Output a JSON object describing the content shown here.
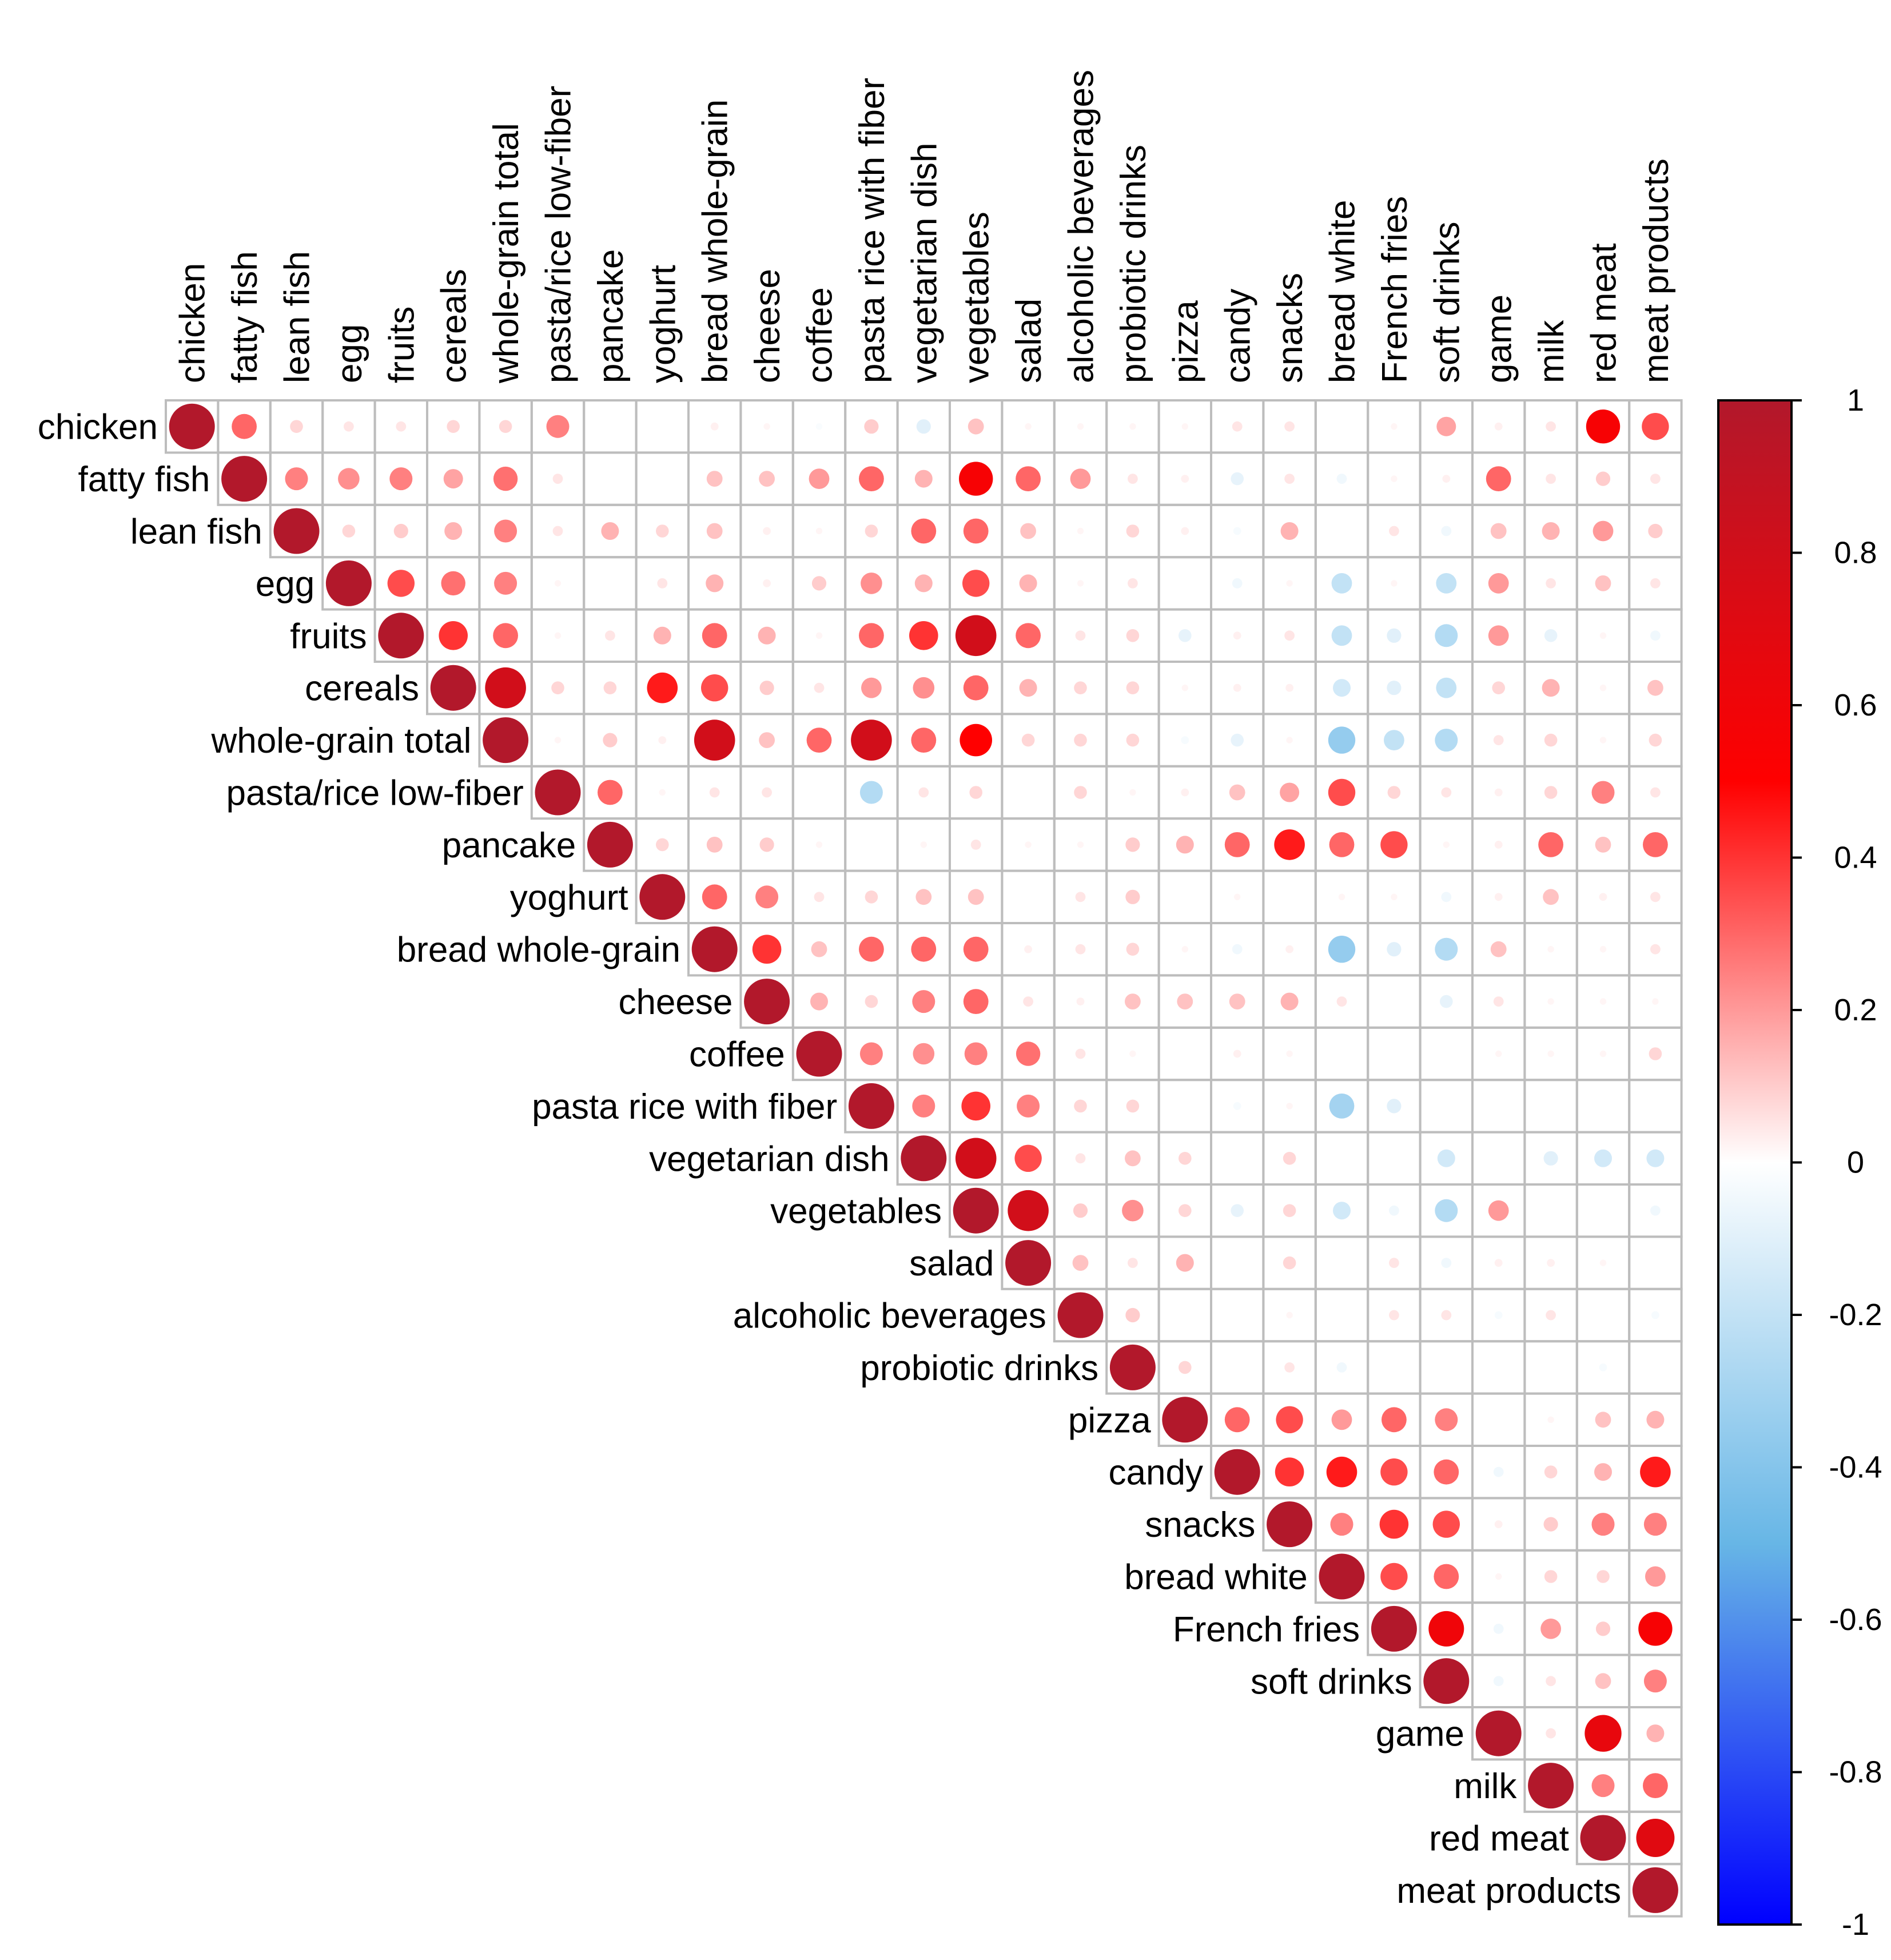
{
  "chart_data": {
    "type": "heatmap",
    "style": "correlation-circles-upper-triangle",
    "title": "",
    "variables": [
      "chicken",
      "fatty fish",
      "lean fish",
      "egg",
      "fruits",
      "cereals",
      "whole-grain total",
      "pasta/rice low-fiber",
      "pancake",
      "yoghurt",
      "bread whole-grain",
      "cheese",
      "coffee",
      "pasta rice with fiber",
      "vegetarian dish",
      "vegetables",
      "salad",
      "alcoholic beverages",
      "probiotic drinks",
      "pizza",
      "candy",
      "snacks",
      "bread white",
      "French fries",
      "soft drinks",
      "game",
      "milk",
      "red meat",
      "meat products"
    ],
    "color_scale": {
      "range": [
        -1,
        1
      ],
      "ticks": [
        "1",
        "0.8",
        "0.6",
        "0.4",
        "0.2",
        "0",
        "-0.2",
        "-0.4",
        "-0.6",
        "-0.8",
        "-1"
      ],
      "colors": [
        "#0000ff",
        "#67b6e6",
        "#ffffff",
        "#ff0000",
        "#b2182b"
      ]
    },
    "correlations": [
      [
        1.0,
        0.3,
        0.08,
        0.05,
        0.05,
        0.08,
        0.08,
        0.25,
        0.0,
        0.0,
        0.03,
        0.02,
        -0.02,
        0.1,
        -0.1,
        0.12,
        0.02,
        0.02,
        0.02,
        0.02,
        0.05,
        0.05,
        0.0,
        0.02,
        0.18,
        0.03,
        0.05,
        0.55,
        0.35
      ],
      [
        0,
        1.0,
        0.25,
        0.22,
        0.25,
        0.18,
        0.28,
        0.05,
        0.0,
        0.0,
        0.12,
        0.12,
        0.2,
        0.3,
        0.15,
        0.55,
        0.3,
        0.2,
        0.05,
        0.03,
        -0.08,
        0.05,
        -0.05,
        0.02,
        0.03,
        0.3,
        0.05,
        0.1,
        0.05
      ],
      [
        0,
        0,
        1.0,
        0.08,
        0.1,
        0.15,
        0.25,
        0.05,
        0.15,
        0.08,
        0.12,
        0.03,
        0.02,
        0.08,
        0.3,
        0.3,
        0.12,
        0.02,
        0.08,
        0.03,
        -0.03,
        0.15,
        0.0,
        0.05,
        -0.05,
        0.12,
        0.15,
        0.2,
        0.1
      ],
      [
        0,
        0,
        0,
        1.0,
        0.35,
        0.28,
        0.25,
        0.02,
        0.0,
        0.05,
        0.15,
        0.03,
        0.1,
        0.22,
        0.15,
        0.35,
        0.15,
        0.02,
        0.05,
        0.0,
        -0.05,
        0.02,
        -0.2,
        0.02,
        -0.2,
        0.2,
        0.05,
        0.12,
        0.05
      ],
      [
        0,
        0,
        0,
        0,
        1.0,
        0.4,
        0.3,
        0.02,
        0.05,
        0.15,
        0.3,
        0.15,
        0.02,
        0.3,
        0.4,
        0.8,
        0.3,
        0.05,
        0.08,
        -0.08,
        0.03,
        0.05,
        -0.2,
        -0.1,
        -0.25,
        0.2,
        -0.08,
        0.02,
        -0.05
      ],
      [
        0,
        0,
        0,
        0,
        0,
        1.0,
        0.8,
        0.08,
        0.08,
        0.45,
        0.35,
        0.1,
        0.05,
        0.2,
        0.22,
        0.3,
        0.15,
        0.08,
        0.08,
        0.02,
        0.03,
        0.03,
        -0.15,
        -0.1,
        -0.2,
        0.08,
        0.15,
        0.02,
        0.12
      ],
      [
        0,
        0,
        0,
        0,
        0,
        0,
        1.0,
        0.02,
        0.1,
        0.03,
        0.8,
        0.12,
        0.3,
        0.8,
        0.3,
        0.5,
        0.08,
        0.08,
        0.08,
        -0.03,
        -0.08,
        0.02,
        -0.35,
        -0.2,
        -0.25,
        0.05,
        0.08,
        0.02,
        0.08
      ],
      [
        0,
        0,
        0,
        0,
        0,
        0,
        0,
        1.0,
        0.3,
        0.02,
        0.05,
        0.05,
        0.0,
        -0.25,
        0.05,
        0.08,
        0.0,
        0.08,
        0.02,
        0.03,
        0.12,
        0.18,
        0.35,
        0.08,
        0.05,
        0.03,
        0.08,
        0.25,
        0.05
      ],
      [
        0,
        0,
        0,
        0,
        0,
        0,
        0,
        0,
        1.0,
        0.08,
        0.12,
        0.1,
        0.02,
        0.0,
        0.02,
        0.05,
        0.02,
        0.02,
        0.1,
        0.15,
        0.3,
        0.45,
        0.3,
        0.35,
        0.02,
        0.03,
        0.3,
        0.12,
        0.3
      ],
      [
        0,
        0,
        0,
        0,
        0,
        0,
        0,
        0,
        0,
        1.0,
        0.3,
        0.25,
        0.05,
        0.08,
        0.12,
        0.12,
        0.0,
        0.05,
        0.1,
        0.0,
        0.02,
        0.0,
        0.02,
        0.02,
        -0.05,
        0.03,
        0.12,
        0.03,
        0.05
      ],
      [
        0,
        0,
        0,
        0,
        0,
        0,
        0,
        0,
        0,
        0,
        1.0,
        0.4,
        0.12,
        0.3,
        0.3,
        0.3,
        0.03,
        0.05,
        0.08,
        0.02,
        -0.05,
        0.03,
        -0.35,
        -0.1,
        -0.25,
        0.12,
        0.02,
        0.02,
        0.05
      ],
      [
        0,
        0,
        0,
        0,
        0,
        0,
        0,
        0,
        0,
        0,
        0,
        1.0,
        0.15,
        0.08,
        0.25,
        0.3,
        0.05,
        0.03,
        0.12,
        0.12,
        0.12,
        0.15,
        0.05,
        0.0,
        -0.08,
        0.05,
        0.02,
        0.02,
        0.02
      ],
      [
        0,
        0,
        0,
        0,
        0,
        0,
        0,
        0,
        0,
        0,
        0,
        0,
        1.0,
        0.25,
        0.22,
        0.25,
        0.28,
        0.05,
        0.02,
        0.0,
        0.03,
        0.02,
        0.0,
        0.0,
        0.0,
        0.02,
        0.02,
        0.02,
        0.08
      ],
      [
        0,
        0,
        0,
        0,
        0,
        0,
        0,
        0,
        0,
        0,
        0,
        0,
        0,
        1.0,
        0.25,
        0.4,
        0.25,
        0.08,
        0.08,
        0.0,
        -0.03,
        0.02,
        -0.3,
        -0.1,
        0.0,
        0.0,
        0.0,
        0.0,
        0.0
      ],
      [
        0,
        0,
        0,
        0,
        0,
        0,
        0,
        0,
        0,
        0,
        0,
        0,
        0,
        0,
        1.0,
        0.8,
        0.35,
        0.05,
        0.12,
        0.08,
        0.0,
        0.08,
        0.0,
        0.0,
        -0.15,
        0.0,
        -0.1,
        -0.15,
        -0.15
      ],
      [
        0,
        0,
        0,
        0,
        0,
        0,
        0,
        0,
        0,
        0,
        0,
        0,
        0,
        0,
        0,
        1.0,
        0.8,
        0.1,
        0.22,
        0.08,
        -0.08,
        0.08,
        -0.15,
        -0.05,
        -0.25,
        0.2,
        0.0,
        0.0,
        -0.05
      ],
      [
        0,
        0,
        0,
        0,
        0,
        0,
        0,
        0,
        0,
        0,
        0,
        0,
        0,
        0,
        0,
        0,
        1.0,
        0.12,
        0.05,
        0.15,
        0.0,
        0.08,
        0.0,
        0.05,
        -0.05,
        0.03,
        0.03,
        0.02,
        0.0
      ],
      [
        0,
        0,
        0,
        0,
        0,
        0,
        0,
        0,
        0,
        0,
        0,
        0,
        0,
        0,
        0,
        0,
        0,
        1.0,
        0.1,
        0.0,
        0.0,
        0.02,
        0.0,
        0.05,
        0.05,
        -0.03,
        0.05,
        0.0,
        -0.03
      ],
      [
        0,
        0,
        0,
        0,
        0,
        0,
        0,
        0,
        0,
        0,
        0,
        0,
        0,
        0,
        0,
        0,
        0,
        0,
        1.0,
        0.08,
        0.0,
        0.05,
        -0.05,
        0.0,
        0.0,
        0.0,
        0.0,
        -0.03,
        0.0
      ],
      [
        0,
        0,
        0,
        0,
        0,
        0,
        0,
        0,
        0,
        0,
        0,
        0,
        0,
        0,
        0,
        0,
        0,
        0,
        0,
        1.0,
        0.3,
        0.35,
        0.2,
        0.3,
        0.25,
        0.0,
        0.02,
        0.12,
        0.15
      ],
      [
        0,
        0,
        0,
        0,
        0,
        0,
        0,
        0,
        0,
        0,
        0,
        0,
        0,
        0,
        0,
        0,
        0,
        0,
        0,
        0,
        1.0,
        0.4,
        0.45,
        0.35,
        0.3,
        -0.05,
        0.08,
        0.15,
        0.45
      ],
      [
        0,
        0,
        0,
        0,
        0,
        0,
        0,
        0,
        0,
        0,
        0,
        0,
        0,
        0,
        0,
        0,
        0,
        0,
        0,
        0,
        0,
        1.0,
        0.25,
        0.4,
        0.35,
        0.03,
        0.1,
        0.25,
        0.25
      ],
      [
        0,
        0,
        0,
        0,
        0,
        0,
        0,
        0,
        0,
        0,
        0,
        0,
        0,
        0,
        0,
        0,
        0,
        0,
        0,
        0,
        0,
        0,
        1.0,
        0.35,
        0.3,
        0.02,
        0.08,
        0.08,
        0.2
      ],
      [
        0,
        0,
        0,
        0,
        0,
        0,
        0,
        0,
        0,
        0,
        0,
        0,
        0,
        0,
        0,
        0,
        0,
        0,
        0,
        0,
        0,
        0,
        0,
        1.0,
        0.6,
        -0.05,
        0.2,
        0.1,
        0.55
      ],
      [
        0,
        0,
        0,
        0,
        0,
        0,
        0,
        0,
        0,
        0,
        0,
        0,
        0,
        0,
        0,
        0,
        0,
        0,
        0,
        0,
        0,
        0,
        0,
        0,
        1.0,
        -0.05,
        0.05,
        0.12,
        0.25
      ],
      [
        0,
        0,
        0,
        0,
        0,
        0,
        0,
        0,
        0,
        0,
        0,
        0,
        0,
        0,
        0,
        0,
        0,
        0,
        0,
        0,
        0,
        0,
        0,
        0,
        0,
        1.0,
        0.05,
        0.65,
        0.15
      ],
      [
        0,
        0,
        0,
        0,
        0,
        0,
        0,
        0,
        0,
        0,
        0,
        0,
        0,
        0,
        0,
        0,
        0,
        0,
        0,
        0,
        0,
        0,
        0,
        0,
        0,
        0,
        1.0,
        0.25,
        0.3
      ],
      [
        0,
        0,
        0,
        0,
        0,
        0,
        0,
        0,
        0,
        0,
        0,
        0,
        0,
        0,
        0,
        0,
        0,
        0,
        0,
        0,
        0,
        0,
        0,
        0,
        0,
        0,
        0,
        1.0,
        0.7
      ],
      [
        0,
        0,
        0,
        0,
        0,
        0,
        0,
        0,
        0,
        0,
        0,
        0,
        0,
        0,
        0,
        0,
        0,
        0,
        0,
        0,
        0,
        0,
        0,
        0,
        0,
        0,
        0,
        0,
        1.0
      ]
    ]
  }
}
